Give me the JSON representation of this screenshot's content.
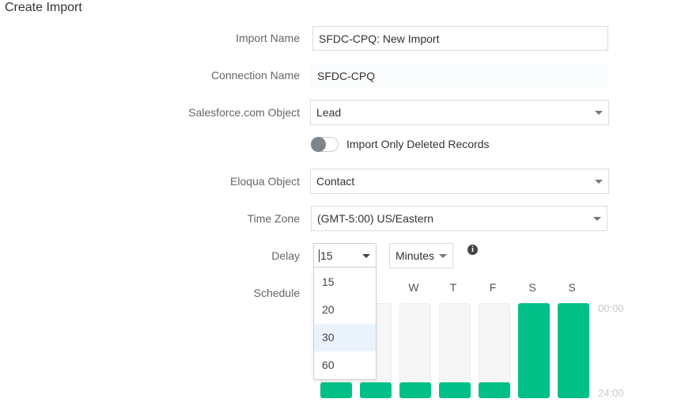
{
  "header": {
    "title": "Create Import"
  },
  "form": {
    "import_name": {
      "label": "Import Name",
      "value": "SFDC-CPQ: New Import"
    },
    "connection_name": {
      "label": "Connection Name",
      "value": "SFDC-CPQ"
    },
    "salesforce_object": {
      "label": "Salesforce.com Object",
      "value": "Lead"
    },
    "deleted_toggle": {
      "label": "Import Only Deleted Records"
    },
    "eloqua_object": {
      "label": "Eloqua Object",
      "value": "Contact"
    },
    "time_zone": {
      "label": "Time Zone",
      "value": "(GMT-5:00) US/Eastern"
    },
    "delay": {
      "label": "Delay",
      "value": "15",
      "unit": "Minutes",
      "options": [
        "15",
        "20",
        "30",
        "60"
      ]
    },
    "schedule": {
      "label": "Schedule",
      "days": [
        "W",
        "T",
        "F",
        "S",
        "S"
      ],
      "start": "00:00",
      "end": "24:00"
    }
  }
}
